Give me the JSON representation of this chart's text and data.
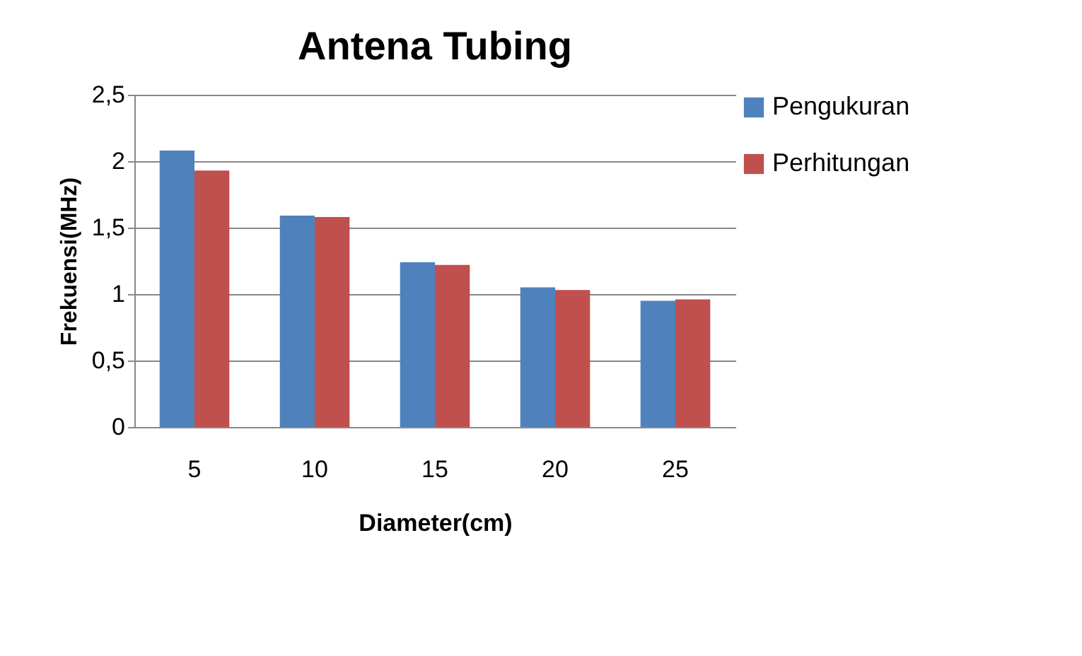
{
  "chart_data": {
    "type": "bar",
    "title": "Antena Tubing",
    "xlabel": "Diameter(cm)",
    "ylabel": "Frekuensi(MHz)",
    "categories": [
      "5",
      "10",
      "15",
      "20",
      "25"
    ],
    "series": [
      {
        "name": "Pengukuran",
        "color": "#4f81bd",
        "values": [
          2.08,
          1.59,
          1.24,
          1.05,
          0.95
        ]
      },
      {
        "name": "Perhitungan",
        "color": "#c0504d",
        "values": [
          1.93,
          1.58,
          1.22,
          1.03,
          0.96
        ]
      }
    ],
    "ylim": [
      0,
      2.5
    ],
    "yticks": [
      0,
      {
        "value": 0.5,
        "label": "0,5"
      },
      1,
      {
        "value": 1.5,
        "label": "1,5"
      },
      2,
      {
        "value": 2.5,
        "label": "2,5"
      }
    ],
    "grid": "y",
    "legend": "right"
  }
}
